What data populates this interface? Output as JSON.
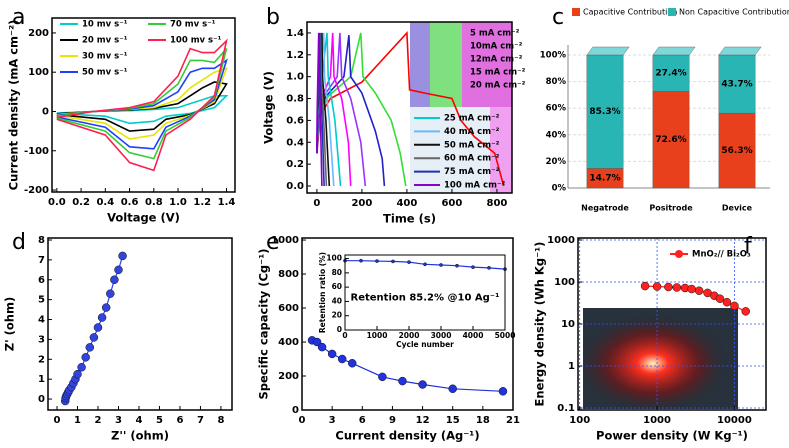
{
  "chart_data": [
    {
      "type": "line",
      "panel": "a",
      "xlabel": "Voltage (V)",
      "ylabel": "Current density (mA cm⁻²)",
      "xlim": [
        -0.04,
        1.47
      ],
      "ylim": [
        -205,
        238
      ],
      "xticks": [
        {
          "value": 0,
          "label": "0.0"
        },
        0.2,
        0.4,
        0.6,
        0.8,
        {
          "value": 1,
          "label": "1.0"
        },
        1.2,
        1.4
      ],
      "yticks": [
        -200,
        -100,
        0,
        100,
        200
      ],
      "series": [
        {
          "name": "10 mv s⁻¹",
          "color": "#00cccc",
          "x": [
            0,
            0.3,
            0.6,
            0.8,
            1.0,
            1.1,
            1.2,
            1.3,
            1.4,
            1.3,
            1.1,
            0.9,
            0.8,
            0.6,
            0.4,
            0
          ],
          "values": [
            -4,
            0,
            2,
            5,
            10,
            20,
            30,
            40,
            40,
            10,
            -5,
            -12,
            -25,
            -30,
            -12,
            -5
          ]
        },
        {
          "name": "20 mv s⁻¹",
          "color": "#000000",
          "x": [
            0,
            0.3,
            0.6,
            0.8,
            1.0,
            1.1,
            1.2,
            1.3,
            1.4,
            1.3,
            1.1,
            0.9,
            0.8,
            0.6,
            0.4,
            0
          ],
          "values": [
            -6,
            0,
            4,
            8,
            20,
            40,
            60,
            75,
            70,
            20,
            -8,
            -20,
            -45,
            -50,
            -20,
            -8
          ]
        },
        {
          "name": "30 mv s⁻¹",
          "color": "#e6e600",
          "x": [
            0,
            0.3,
            0.6,
            0.8,
            1.0,
            1.1,
            1.2,
            1.3,
            1.4,
            1.3,
            1.1,
            0.9,
            0.8,
            0.6,
            0.4,
            0
          ],
          "values": [
            -8,
            0,
            5,
            10,
            30,
            60,
            80,
            100,
            110,
            25,
            -10,
            -30,
            -60,
            -70,
            -30,
            -10
          ]
        },
        {
          "name": "50 mv s⁻¹",
          "color": "#1f3fff",
          "x": [
            0,
            0.3,
            0.6,
            0.8,
            1.0,
            1.1,
            1.2,
            1.3,
            1.4,
            1.3,
            1.1,
            0.9,
            0.8,
            0.6,
            0.4,
            0
          ],
          "values": [
            -10,
            0,
            6,
            15,
            50,
            100,
            110,
            110,
            130,
            30,
            -12,
            -40,
            -95,
            -90,
            -40,
            -14
          ]
        },
        {
          "name": "70 mv s⁻¹",
          "color": "#33cc33",
          "x": [
            0,
            0.3,
            0.6,
            0.8,
            1.0,
            1.1,
            1.2,
            1.3,
            1.4,
            1.3,
            1.1,
            0.9,
            0.8,
            0.6,
            0.4,
            0
          ],
          "values": [
            -12,
            0,
            8,
            20,
            70,
            130,
            130,
            125,
            160,
            35,
            -15,
            -50,
            -120,
            -105,
            -50,
            -17
          ]
        },
        {
          "name": "100 mv s⁻¹",
          "color": "#ff1f4f",
          "x": [
            0,
            0.3,
            0.6,
            0.8,
            1.0,
            1.1,
            1.2,
            1.3,
            1.4,
            1.3,
            1.1,
            0.9,
            0.8,
            0.6,
            0.4,
            0
          ],
          "values": [
            -15,
            0,
            10,
            25,
            90,
            160,
            150,
            150,
            180,
            40,
            -20,
            -60,
            -150,
            -130,
            -60,
            -20
          ]
        }
      ]
    },
    {
      "type": "line",
      "panel": "b",
      "xlabel": "Time (s)",
      "ylabel": "Voltage (V)",
      "xlim": [
        -44,
        867
      ],
      "ylim": [
        -0.064,
        1.5
      ],
      "xticks": [
        0,
        200,
        400,
        600,
        800
      ],
      "yticks": [
        {
          "value": 0,
          "label": "0.0"
        },
        0.2,
        0.4,
        0.6,
        0.8,
        {
          "value": 1,
          "label": "1.0"
        },
        1.2,
        1.4
      ],
      "series": [
        {
          "name": "5 mA cm⁻²",
          "color": "#ff0000",
          "x": [
            0,
            15,
            60,
            200,
            400,
            412,
            480,
            600,
            640,
            700,
            790,
            830
          ],
          "values": [
            0.3,
            0.65,
            0.8,
            0.95,
            1.4,
            0.88,
            0.85,
            0.8,
            0.6,
            0.45,
            0.3,
            0
          ]
        },
        {
          "name": "10mA cm⁻²",
          "color": "#33dd33",
          "x": [
            0,
            10,
            50,
            150,
            195,
            205,
            260,
            330,
            370,
            395
          ],
          "values": [
            0.3,
            0.65,
            0.82,
            1.0,
            1.4,
            1.0,
            0.85,
            0.6,
            0.3,
            0
          ]
        },
        {
          "name": "12mA cm⁻²",
          "color": "#1f1fcc",
          "x": [
            0,
            8,
            40,
            120,
            142,
            150,
            200,
            260,
            290,
            300
          ],
          "values": [
            0.3,
            0.65,
            0.82,
            1.0,
            1.38,
            1.0,
            0.85,
            0.5,
            0.25,
            0
          ]
        },
        {
          "name": "15 mA cm⁻²",
          "color": "#9933ff",
          "x": [
            0,
            6,
            30,
            90,
            102,
            110,
            150,
            195,
            215
          ],
          "values": [
            0.3,
            0.65,
            0.82,
            1.0,
            1.4,
            1.0,
            0.8,
            0.4,
            0
          ]
        },
        {
          "name": "20 mA cm⁻²",
          "color": "#ff00ff",
          "x": [
            0,
            5,
            25,
            60,
            70,
            76,
            110,
            140,
            150
          ],
          "values": [
            0.3,
            0.65,
            0.82,
            1.0,
            1.4,
            1.0,
            0.8,
            0.4,
            0
          ]
        },
        {
          "name": "25 mA cm⁻²",
          "color": "#00cccc",
          "x": [
            0,
            4,
            45,
            50,
            80,
            105
          ],
          "values": [
            0.3,
            0.65,
            1.4,
            1.0,
            0.6,
            0
          ]
        },
        {
          "name": "40 mA cm⁻²",
          "color": "#66bbff",
          "x": [
            0,
            3,
            30,
            34,
            55,
            75
          ],
          "values": [
            0.3,
            0.65,
            1.4,
            1.0,
            0.6,
            0
          ]
        },
        {
          "name": "50 mA cm⁻²",
          "color": "#111111",
          "x": [
            0,
            3,
            22,
            25,
            40,
            55
          ],
          "values": [
            0.3,
            0.65,
            1.4,
            1.0,
            0.6,
            0
          ]
        },
        {
          "name": "60 mA cm⁻²",
          "color": "#666666",
          "x": [
            0,
            2,
            16,
            19,
            30,
            42
          ],
          "values": [
            0.3,
            0.65,
            1.4,
            1.0,
            0.6,
            0
          ]
        },
        {
          "name": "75 mA cm⁻²",
          "color": "#2233aa",
          "x": [
            0,
            2,
            12,
            14,
            23,
            32
          ],
          "values": [
            0.3,
            0.65,
            1.4,
            1.0,
            0.6,
            0
          ]
        },
        {
          "name": "100 mA cm⁻²",
          "color": "#8800cc",
          "x": [
            0,
            1,
            8,
            10,
            16,
            22
          ],
          "values": [
            0.3,
            0.65,
            1.4,
            1.0,
            0.6,
            0
          ]
        }
      ]
    },
    {
      "type": "bar",
      "stacked": true,
      "panel": "c",
      "categories": [
        "Negatrode",
        "Positrode",
        "Device"
      ],
      "ylim": [
        0,
        100
      ],
      "yticks": [
        {
          "value": 0,
          "label": "0%"
        },
        {
          "value": 20,
          "label": "20%"
        },
        {
          "value": 40,
          "label": "40%"
        },
        {
          "value": 60,
          "label": "60%"
        },
        {
          "value": 80,
          "label": "80%"
        },
        {
          "value": 100,
          "label": "100%"
        }
      ],
      "series": [
        {
          "name": "Capacitive Contribution",
          "color": "#e8401c",
          "values": [
            14.7,
            72.6,
            56.3
          ],
          "value_labels": [
            "14.7%",
            "72.6%",
            "56.3%"
          ]
        },
        {
          "name": "Non Capacitive Contribution",
          "color": "#2ab5b5",
          "values": [
            85.3,
            27.4,
            43.7
          ],
          "value_labels": [
            "85.3%",
            "27.4%",
            "43.7%"
          ]
        }
      ]
    },
    {
      "type": "line",
      "panel": "d",
      "xlabel": "Z'' (ohm)",
      "ylabel": "Z' (ohm)",
      "markers": true,
      "color": "#3344dd",
      "xlim": [
        -0.44,
        8.54
      ],
      "ylim": [
        -0.55,
        8.1
      ],
      "xticks": [
        0,
        1,
        2,
        3,
        4,
        5,
        6,
        7,
        8
      ],
      "yticks": [
        0,
        1,
        2,
        3,
        4,
        5,
        6,
        7,
        8
      ],
      "x": [
        0.4,
        0.42,
        0.45,
        0.5,
        0.55,
        0.6,
        0.7,
        0.8,
        0.9,
        1.0,
        1.2,
        1.4,
        1.6,
        1.8,
        2.0,
        2.2,
        2.4,
        2.6,
        2.8,
        3.0,
        3.2
      ],
      "values": [
        -0.1,
        0.05,
        0.15,
        0.25,
        0.35,
        0.45,
        0.6,
        0.8,
        1.0,
        1.25,
        1.6,
        2.1,
        2.6,
        3.1,
        3.6,
        4.1,
        4.6,
        5.3,
        6.0,
        6.5,
        7.2
      ]
    },
    {
      "type": "line",
      "panel": "e",
      "xlabel": "Current density (Ag⁻¹)",
      "ylabel": "Specific capacity (Cg⁻¹)",
      "markers": true,
      "color": "#2233dd",
      "xlim": [
        0,
        21
      ],
      "ylim": [
        0,
        1012
      ],
      "xticks": [
        0,
        3,
        6,
        9,
        12,
        15,
        18,
        21
      ],
      "yticks": [
        0,
        200,
        400,
        600,
        800,
        1000
      ],
      "x": [
        1,
        1.5,
        2,
        3,
        4,
        5,
        8,
        10,
        12,
        15,
        20
      ],
      "values": [
        410,
        400,
        370,
        330,
        300,
        275,
        195,
        170,
        150,
        125,
        110
      ]
    },
    {
      "type": "line",
      "xlabel": "Cycle number",
      "ylabel": "Retention ratio (%)",
      "markers": true,
      "color": "#2233dd",
      "annotation": "Retention 85.2% @10 Ag⁻¹",
      "xlim": [
        0,
        5000
      ],
      "ylim": [
        0,
        105
      ],
      "xticks": [
        0,
        1000,
        2000,
        3000,
        4000,
        5000
      ],
      "yticks": [
        0,
        20,
        40,
        60,
        80,
        100
      ],
      "x": [
        0,
        500,
        1000,
        1500,
        2000,
        2500,
        3000,
        3500,
        4000,
        4500,
        5000
      ],
      "values": [
        97,
        97,
        96.5,
        96,
        95,
        92,
        91,
        90,
        88,
        87,
        85.2
      ]
    },
    {
      "type": "line",
      "panel": "f",
      "xlabel": "Power density (W Kg⁻¹)",
      "ylabel": "Energy density (Wh Kg⁻¹)",
      "markers": true,
      "log_x": true,
      "log_y": true,
      "grid": true,
      "xlim": [
        95,
        25600
      ],
      "ylim": [
        0.0896,
        1116
      ],
      "xticks": [
        100,
        1000,
        10000
      ],
      "yticks": [
        0.1,
        1,
        10,
        100,
        1000
      ],
      "series": [
        {
          "name": "MnO₂// Bi₂O₃",
          "color": "#ff2020",
          "x": [
            700,
            1000,
            1400,
            1800,
            2300,
            2800,
            3500,
            4500,
            5500,
            6500,
            8000,
            10000,
            14000
          ],
          "values": [
            80,
            78,
            76,
            74,
            72,
            68,
            62,
            55,
            47,
            40,
            33,
            27,
            20
          ]
        }
      ]
    }
  ]
}
